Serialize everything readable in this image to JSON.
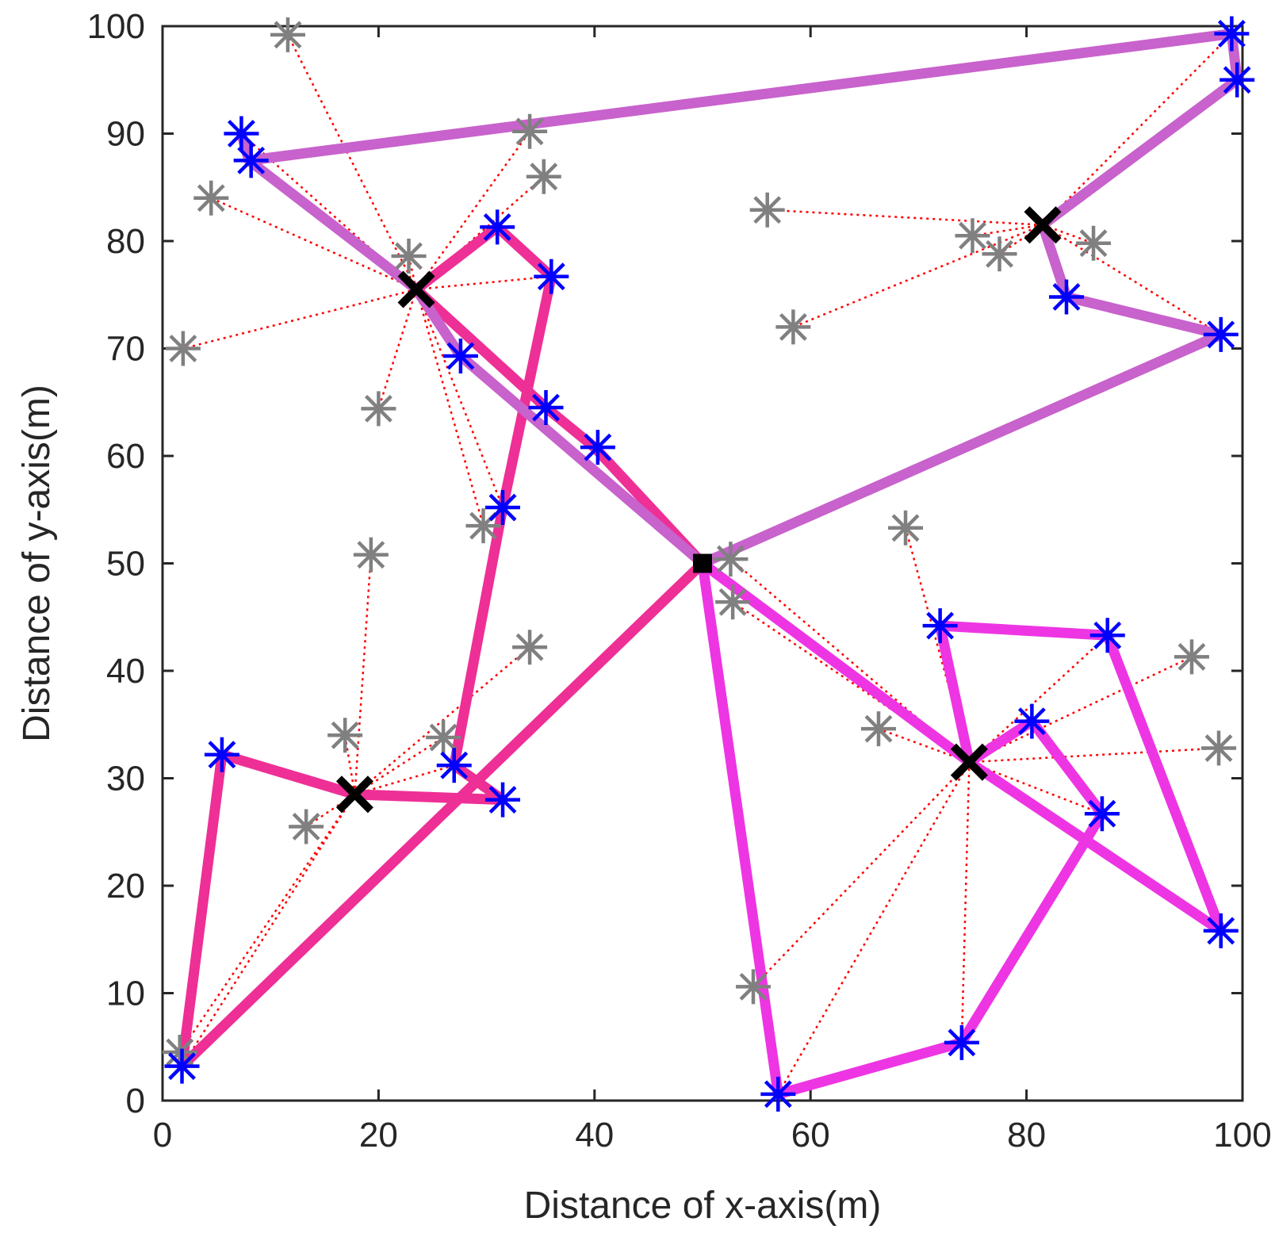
{
  "chart_data": {
    "type": "scatter",
    "title": "",
    "xlabel": "Distance of x-axis(m)",
    "ylabel": "Distance of y-axis(m)",
    "xlim": [
      0,
      100
    ],
    "ylim": [
      0,
      100
    ],
    "xticks": [
      0,
      20,
      40,
      60,
      80,
      100
    ],
    "yticks": [
      0,
      10,
      20,
      30,
      40,
      50,
      60,
      70,
      80,
      90,
      100
    ],
    "xtick_labels": [
      "0",
      "20",
      "40",
      "60",
      "80",
      "100"
    ],
    "ytick_labels": [
      "0",
      "10",
      "20",
      "30",
      "40",
      "50",
      "60",
      "70",
      "80",
      "90",
      "100"
    ],
    "grid": false,
    "colors": {
      "route_pink": "#ee2f96",
      "route_magenta": "#ee35e3",
      "route_purple": "#c862cc",
      "assignment_line": "#ff0000",
      "visited_node": "#0000ff",
      "other_node": "#808080",
      "cluster_head": "#000000"
    },
    "base_station": {
      "x": 50,
      "y": 50
    },
    "routes": [
      {
        "name": "pink-route-a",
        "color": "route_pink",
        "points": [
          [
            50,
            50
          ],
          [
            40,
            60.8
          ],
          [
            35.5,
            64.5
          ],
          [
            23.5,
            75.5
          ],
          [
            31,
            81.3
          ],
          [
            36,
            76.7
          ],
          [
            31.5,
            55.2
          ],
          [
            27,
            31.2
          ],
          [
            31.5,
            28
          ],
          [
            17.8,
            28.5
          ],
          [
            5.5,
            32.2
          ],
          [
            1.8,
            3.2
          ],
          [
            50,
            50
          ]
        ]
      },
      {
        "name": "magenta-route",
        "color": "route_magenta",
        "points": [
          [
            50,
            50
          ],
          [
            74.7,
            31.5
          ],
          [
            80.5,
            35.3
          ],
          [
            87,
            26.7
          ],
          [
            74,
            5.4
          ],
          [
            57,
            0.6
          ],
          [
            50,
            50
          ]
        ]
      },
      {
        "name": "magenta-route-b",
        "color": "route_magenta",
        "points": [
          [
            74.7,
            31.5
          ],
          [
            72,
            44.2
          ],
          [
            87.5,
            43.3
          ],
          [
            98,
            15.8
          ],
          [
            74.7,
            31.5
          ]
        ]
      },
      {
        "name": "purple-route",
        "color": "route_purple",
        "points": [
          [
            50,
            50
          ],
          [
            27.6,
            69.3
          ],
          [
            23.5,
            75.5
          ],
          [
            8,
            87.5
          ],
          [
            7.3,
            90
          ],
          [
            8,
            87.5
          ],
          [
            99,
            99.3
          ],
          [
            99.5,
            95
          ],
          [
            81.5,
            81.5
          ],
          [
            83.7,
            74.8
          ],
          [
            98,
            71.3
          ],
          [
            50,
            50
          ]
        ]
      }
    ],
    "visited_nodes": [
      {
        "x": 7.3,
        "y": 90
      },
      {
        "x": 8.2,
        "y": 87.5
      },
      {
        "x": 31,
        "y": 81.3
      },
      {
        "x": 36,
        "y": 76.7
      },
      {
        "x": 27.6,
        "y": 69.3
      },
      {
        "x": 35.5,
        "y": 64.5
      },
      {
        "x": 40.3,
        "y": 60.8
      },
      {
        "x": 31.5,
        "y": 55.2
      },
      {
        "x": 27,
        "y": 31.2
      },
      {
        "x": 31.5,
        "y": 28
      },
      {
        "x": 5.5,
        "y": 32.2
      },
      {
        "x": 1.8,
        "y": 3.2
      },
      {
        "x": 99,
        "y": 99.3
      },
      {
        "x": 99.5,
        "y": 95
      },
      {
        "x": 83.7,
        "y": 74.8
      },
      {
        "x": 98,
        "y": 71.3
      },
      {
        "x": 72,
        "y": 44.2
      },
      {
        "x": 87.5,
        "y": 43.3
      },
      {
        "x": 80.5,
        "y": 35.3
      },
      {
        "x": 87,
        "y": 26.7
      },
      {
        "x": 98,
        "y": 15.8
      },
      {
        "x": 74,
        "y": 5.4
      },
      {
        "x": 57,
        "y": 0.6
      }
    ],
    "other_nodes": [
      {
        "x": 11.6,
        "y": 99.2,
        "head": 1
      },
      {
        "x": 34,
        "y": 90.2,
        "head": 1
      },
      {
        "x": 35.3,
        "y": 86,
        "head": 1
      },
      {
        "x": 4.5,
        "y": 84,
        "head": 1
      },
      {
        "x": 22.8,
        "y": 78.6,
        "head": 1
      },
      {
        "x": 1.9,
        "y": 70,
        "head": 1
      },
      {
        "x": 20,
        "y": 64.4,
        "head": 1
      },
      {
        "x": 29.7,
        "y": 53.5,
        "head": 1
      },
      {
        "x": 19.3,
        "y": 50.8,
        "head": 0
      },
      {
        "x": 34,
        "y": 42.2,
        "head": 0
      },
      {
        "x": 16.9,
        "y": 34,
        "head": 0
      },
      {
        "x": 26,
        "y": 33.8,
        "head": 0
      },
      {
        "x": 13.3,
        "y": 25.5,
        "head": 0
      },
      {
        "x": 1.6,
        "y": 4.5,
        "head": 0
      },
      {
        "x": 56,
        "y": 82.9,
        "head": 3
      },
      {
        "x": 75,
        "y": 80.5,
        "head": 3
      },
      {
        "x": 77.5,
        "y": 78.8,
        "head": 3
      },
      {
        "x": 86.2,
        "y": 79.8,
        "head": 3
      },
      {
        "x": 58.4,
        "y": 72,
        "head": 3
      },
      {
        "x": 68.8,
        "y": 53.3,
        "head": 2
      },
      {
        "x": 52.6,
        "y": 50.4,
        "head": 2
      },
      {
        "x": 52.8,
        "y": 46.4,
        "head": 2
      },
      {
        "x": 95.3,
        "y": 41.3,
        "head": 2
      },
      {
        "x": 66.3,
        "y": 34.6,
        "head": 2
      },
      {
        "x": 97.8,
        "y": 32.8,
        "head": 2
      },
      {
        "x": 54.7,
        "y": 10.6,
        "head": 2
      }
    ],
    "cluster_heads": [
      {
        "x": 17.8,
        "y": 28.5
      },
      {
        "x": 23.5,
        "y": 75.5
      },
      {
        "x": 74.7,
        "y": 31.5
      },
      {
        "x": 81.5,
        "y": 81.5
      }
    ],
    "head_assignments": [
      {
        "head": 0,
        "nodes": [
          [
            5.5,
            32.2
          ],
          [
            1.8,
            3.2
          ],
          [
            27,
            31.2
          ],
          [
            31.5,
            28
          ]
        ]
      },
      {
        "head": 1,
        "nodes": [
          [
            7.3,
            90
          ],
          [
            8.2,
            87.5
          ],
          [
            31,
            81.3
          ],
          [
            36,
            76.7
          ],
          [
            27.6,
            69.3
          ],
          [
            31.5,
            55.2
          ]
        ]
      },
      {
        "head": 2,
        "nodes": [
          [
            50,
            50
          ],
          [
            72,
            44.2
          ],
          [
            87.5,
            43.3
          ],
          [
            80.5,
            35.3
          ],
          [
            87,
            26.7
          ],
          [
            98,
            15.8
          ],
          [
            74,
            5.4
          ],
          [
            57,
            0.6
          ]
        ]
      },
      {
        "head": 3,
        "nodes": [
          [
            99,
            99.3
          ],
          [
            99.5,
            95
          ],
          [
            83.7,
            74.8
          ],
          [
            98,
            71.3
          ]
        ]
      }
    ]
  }
}
